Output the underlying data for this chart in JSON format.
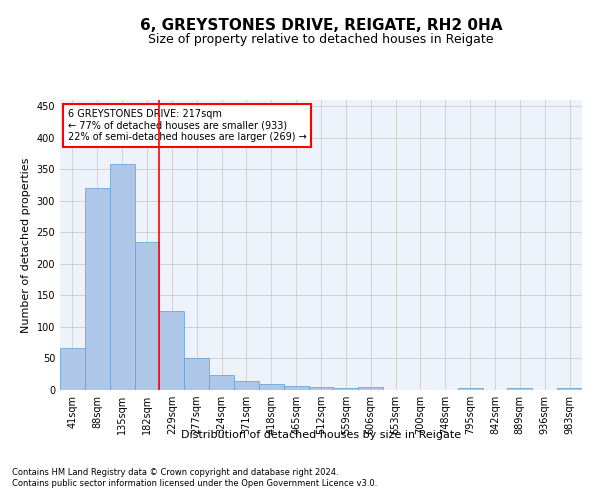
{
  "title": "6, GREYSTONES DRIVE, REIGATE, RH2 0HA",
  "subtitle": "Size of property relative to detached houses in Reigate",
  "xlabel": "Distribution of detached houses by size in Reigate",
  "ylabel": "Number of detached properties",
  "footer": "Contains HM Land Registry data © Crown copyright and database right 2024.\nContains public sector information licensed under the Open Government Licence v3.0.",
  "categories": [
    "41sqm",
    "88sqm",
    "135sqm",
    "182sqm",
    "229sqm",
    "277sqm",
    "324sqm",
    "371sqm",
    "418sqm",
    "465sqm",
    "512sqm",
    "559sqm",
    "606sqm",
    "653sqm",
    "700sqm",
    "748sqm",
    "795sqm",
    "842sqm",
    "889sqm",
    "936sqm",
    "983sqm"
  ],
  "values": [
    67,
    321,
    358,
    235,
    126,
    50,
    24,
    15,
    9,
    6,
    4,
    3,
    4,
    0,
    0,
    0,
    3,
    0,
    3,
    0,
    3
  ],
  "bar_color": "#aec6e8",
  "bar_edge_color": "#5a9fd4",
  "grid_color": "#cccccc",
  "vline_color": "red",
  "vline_pos": 3.5,
  "annotation_text": "6 GREYSTONES DRIVE: 217sqm\n← 77% of detached houses are smaller (933)\n22% of semi-detached houses are larger (269) →",
  "ylim": [
    0,
    460
  ],
  "yticks": [
    0,
    50,
    100,
    150,
    200,
    250,
    300,
    350,
    400,
    450
  ],
  "background_color": "#eef2fb",
  "title_fontsize": 11,
  "subtitle_fontsize": 9,
  "tick_fontsize": 7,
  "ylabel_fontsize": 8,
  "xlabel_fontsize": 8,
  "annotation_fontsize": 7,
  "footer_fontsize": 6
}
